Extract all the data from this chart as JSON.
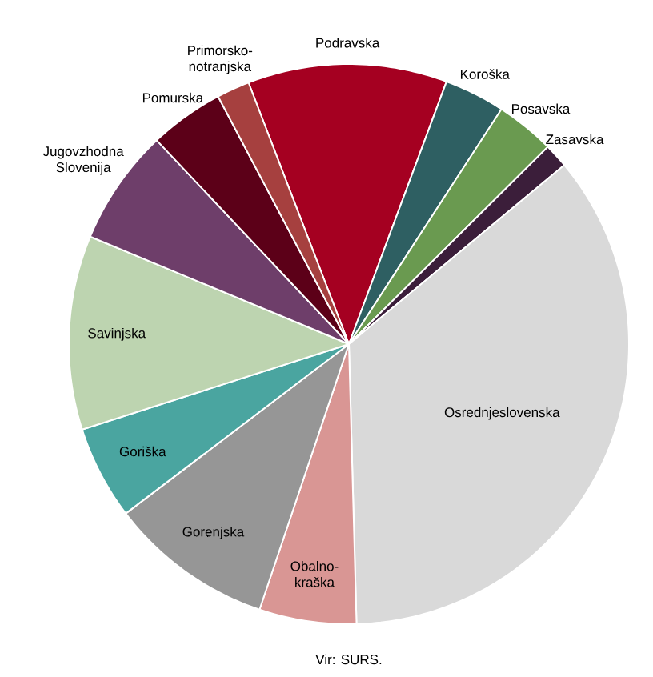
{
  "chart_data": {
    "type": "pie",
    "categories": [
      "Podravska",
      "Koroška",
      "Posavska",
      "Zasavska",
      "Osrednjeslovenska",
      "Obalno-kraška",
      "Gorenjska",
      "Goriška",
      "Savinjska",
      "Jugovzhodna Slovenija",
      "Pomurska",
      "Primorsko-notranjska"
    ],
    "values": [
      11.5,
      3.5,
      3.4,
      1.4,
      35.6,
      5.6,
      9.5,
      5.4,
      11.2,
      6.7,
      4.3,
      1.9
    ],
    "colors": [
      "#a50021",
      "#2e5f62",
      "#6a9a50",
      "#3b1e3a",
      "#d9d9d9",
      "#d99694",
      "#969696",
      "#4aa5a0",
      "#bdd4b0",
      "#6e3e6a",
      "#5c0018",
      "#a6403f"
    ],
    "annotations": [
      "Vir: SURS."
    ]
  }
}
